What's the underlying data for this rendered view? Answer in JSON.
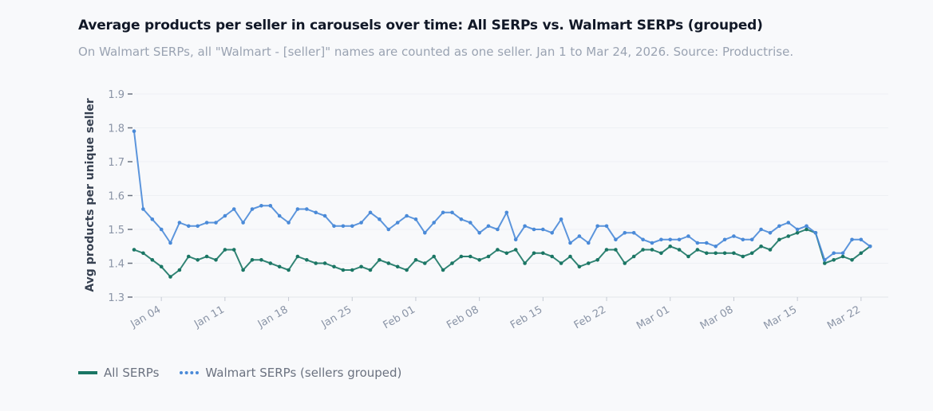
{
  "title": "Average products per seller in carousels over time: All SERPs vs. Walmart SERPs (grouped)",
  "subtitle": "On Walmart SERPs, all \"Walmart - [seller]\" names are counted as one seller. Jan 1 to Mar 24, 2026. Source: Productrise.",
  "colors": {
    "all_serps": "#1a7664",
    "walmart": "#4a8ad8",
    "grid": "#eef0f4",
    "axis_text": "#8a94a6"
  },
  "legend": [
    {
      "label": "All SERPs",
      "style": "solid"
    },
    {
      "label": "Walmart SERPs (sellers grouped)",
      "style": "dotted"
    }
  ],
  "chart_data": {
    "type": "line",
    "title": "Average products per seller in carousels over time: All SERPs vs. Walmart SERPs (grouped)",
    "xlabel": "",
    "ylabel": "Avg products per unique seller",
    "ylim": [
      1.3,
      1.9
    ],
    "yticks": [
      1.3,
      1.4,
      1.5,
      1.6,
      1.7,
      1.8,
      1.9
    ],
    "xticks": [
      {
        "day": 4,
        "label": "Jan 04"
      },
      {
        "day": 11,
        "label": "Jan 11"
      },
      {
        "day": 18,
        "label": "Jan 18"
      },
      {
        "day": 25,
        "label": "Jan 25"
      },
      {
        "day": 32,
        "label": "Feb 01"
      },
      {
        "day": 39,
        "label": "Feb 08"
      },
      {
        "day": 46,
        "label": "Feb 15"
      },
      {
        "day": 53,
        "label": "Feb 22"
      },
      {
        "day": 60,
        "label": "Mar 01"
      },
      {
        "day": 67,
        "label": "Mar 08"
      },
      {
        "day": 74,
        "label": "Mar 15"
      },
      {
        "day": 81,
        "label": "Mar 22"
      }
    ],
    "x_start": "Jan 01",
    "x_end": "Mar 24",
    "x_domain": [
      1,
      84
    ],
    "series": [
      {
        "name": "All SERPs",
        "values": [
          1.44,
          1.43,
          1.41,
          1.39,
          1.36,
          1.38,
          1.42,
          1.41,
          1.42,
          1.41,
          1.44,
          1.44,
          1.38,
          1.41,
          1.41,
          1.4,
          1.39,
          1.38,
          1.42,
          1.41,
          1.4,
          1.4,
          1.39,
          1.38,
          1.38,
          1.39,
          1.38,
          1.41,
          1.4,
          1.39,
          1.38,
          1.41,
          1.4,
          1.42,
          1.38,
          1.4,
          1.42,
          1.42,
          1.41,
          1.42,
          1.44,
          1.43,
          1.44,
          1.4,
          1.43,
          1.43,
          1.42,
          1.4,
          1.42,
          1.39,
          1.4,
          1.41,
          1.44,
          1.44,
          1.4,
          1.42,
          1.44,
          1.44,
          1.43,
          1.45,
          1.44,
          1.42,
          1.44,
          1.43,
          1.43,
          1.43,
          1.43,
          1.42,
          1.43,
          1.45,
          1.44,
          1.47,
          1.48,
          1.49,
          1.5,
          1.49,
          1.4,
          1.41,
          1.42,
          1.41,
          1.43,
          1.45
        ]
      },
      {
        "name": "Walmart SERPs (sellers grouped)",
        "values": [
          1.79,
          1.56,
          1.53,
          1.5,
          1.46,
          1.52,
          1.51,
          1.51,
          1.52,
          1.52,
          1.54,
          1.56,
          1.52,
          1.56,
          1.57,
          1.57,
          1.54,
          1.52,
          1.56,
          1.56,
          1.55,
          1.54,
          1.51,
          1.51,
          1.51,
          1.52,
          1.55,
          1.53,
          1.5,
          1.52,
          1.54,
          1.53,
          1.49,
          1.52,
          1.55,
          1.55,
          1.53,
          1.52,
          1.49,
          1.51,
          1.5,
          1.55,
          1.47,
          1.51,
          1.5,
          1.5,
          1.49,
          1.53,
          1.46,
          1.48,
          1.46,
          1.51,
          1.51,
          1.47,
          1.49,
          1.49,
          1.47,
          1.46,
          1.47,
          1.47,
          1.47,
          1.48,
          1.46,
          1.46,
          1.45,
          1.47,
          1.48,
          1.47,
          1.47,
          1.5,
          1.49,
          1.51,
          1.52,
          1.5,
          1.51,
          1.49,
          1.41,
          1.43,
          1.43,
          1.47,
          1.47,
          1.45
        ]
      }
    ]
  }
}
